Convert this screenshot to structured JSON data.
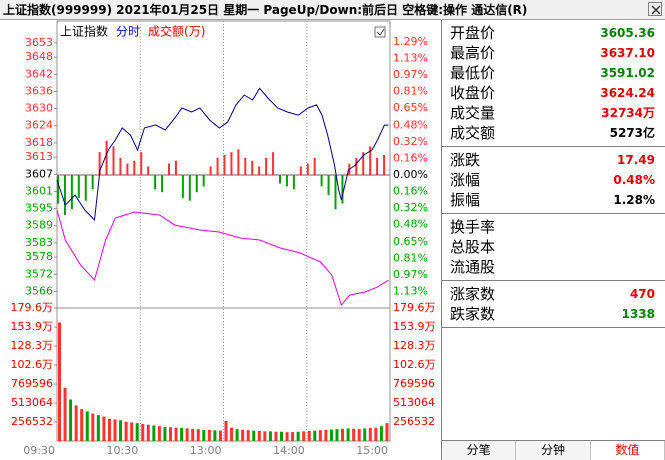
{
  "window": {
    "title": "上证指数(999999)  2021年01月25日 星期一  PageUp/Down:前后日 空格键:操作 通达信(R)"
  },
  "chart_data": [
    {
      "type": "line",
      "pane_labels": [
        {
          "text": "上证指数",
          "color": "#000000"
        },
        {
          "text": "分时",
          "color": "#0000ff"
        },
        {
          "text": "成交额(万)",
          "color": "#e00000"
        }
      ],
      "xlim": [
        0,
        240
      ],
      "ylim": [
        3560.2,
        3653.3
      ],
      "yticks": [
        3653,
        3648,
        3642,
        3636,
        3630,
        3624,
        3618,
        3613,
        3607,
        3601,
        3595,
        3589,
        3583,
        3578,
        3572,
        3566
      ],
      "y2lim": [
        -1.29,
        1.29
      ],
      "y2ticks": [
        {
          "value": 1.29,
          "label": "1.29%"
        },
        {
          "value": 1.13,
          "label": "1.13%"
        },
        {
          "value": 0.97,
          "label": "0.97%"
        },
        {
          "value": 0.81,
          "label": "0.81%"
        },
        {
          "value": 0.65,
          "label": "0.65%"
        },
        {
          "value": 0.48,
          "label": "0.48%"
        },
        {
          "value": 0.32,
          "label": "0.32%"
        },
        {
          "value": 0.16,
          "label": "0.16%"
        },
        {
          "value": 0,
          "label": "0.00%"
        },
        {
          "value": -0.16,
          "label": "0.16%"
        },
        {
          "value": -0.32,
          "label": "0.32%"
        },
        {
          "value": -0.48,
          "label": "0.48%"
        },
        {
          "value": -0.65,
          "label": "0.65%"
        },
        {
          "value": -0.81,
          "label": "0.81%"
        },
        {
          "value": -0.97,
          "label": "0.97%"
        },
        {
          "value": -1.13,
          "label": "1.13%"
        }
      ],
      "up_color": "#ff3232",
      "down_color": "#00a000",
      "series": [
        {
          "color": "#000080",
          "x": [
            0,
            6,
            13,
            20,
            27,
            31,
            37,
            42,
            47,
            53,
            58,
            63,
            71,
            78,
            85,
            90,
            97,
            103,
            110,
            117,
            123,
            129,
            135,
            141,
            146,
            152,
            159,
            166,
            174,
            181,
            187,
            191,
            195,
            200,
            203,
            205,
            210,
            215,
            221,
            227,
            231,
            236,
            239
          ],
          "values": [
            3605.0,
            3596.2,
            3599.7,
            3594.5,
            3591.0,
            3608.5,
            3615.5,
            3619.0,
            3623.2,
            3620.7,
            3615.5,
            3623.2,
            3624.3,
            3622.5,
            3626.7,
            3630.2,
            3628.8,
            3630.2,
            3626.0,
            3623.2,
            3625.3,
            3631.3,
            3634.7,
            3633.0,
            3637.1,
            3633.7,
            3630.2,
            3628.8,
            3627.7,
            3630.2,
            3631.3,
            3627.7,
            3620.8,
            3610.2,
            3601.5,
            3598.0,
            3608.5,
            3610.2,
            3613.7,
            3615.5,
            3619.0,
            3624.2,
            3624.2
          ]
        },
        {
          "color": "#e000e0",
          "x": [
            0,
            6,
            17,
            27,
            35,
            42,
            56,
            74,
            85,
            103,
            117,
            132,
            146,
            161,
            175,
            190,
            198,
            205,
            211,
            222,
            231,
            239
          ],
          "values": [
            3594.5,
            3584.0,
            3575.2,
            3570.0,
            3584.0,
            3591.7,
            3593.8,
            3592.7,
            3589.2,
            3587.5,
            3586.8,
            3584.7,
            3584.0,
            3581.2,
            3579.5,
            3576.3,
            3571.8,
            3561.2,
            3564.7,
            3565.8,
            3567.5,
            3570.0
          ]
        }
      ],
      "bars": {
        "x": [
          0,
          5,
          10,
          15,
          20,
          25,
          30,
          35,
          40,
          45,
          50,
          55,
          60,
          65,
          70,
          75,
          80,
          85,
          90,
          95,
          100,
          105,
          110,
          115,
          120,
          125,
          130,
          135,
          140,
          145,
          150,
          155,
          160,
          165,
          170,
          175,
          180,
          185,
          190,
          195,
          200,
          205,
          210,
          215,
          220,
          225,
          230,
          235
        ],
        "values": [
          -10,
          -14,
          -12,
          -8,
          -9,
          -5,
          8,
          12,
          10,
          6,
          4,
          5,
          8,
          3,
          -5,
          -6,
          4,
          5,
          -8,
          -9,
          -6,
          -4,
          3,
          6,
          7,
          8,
          9,
          6,
          5,
          3,
          6,
          8,
          -3,
          -4,
          -5,
          3,
          4,
          6,
          -4,
          -7,
          -12,
          -10,
          4,
          6,
          8,
          10,
          6,
          7
        ]
      }
    },
    {
      "type": "bar",
      "xlim": [
        0,
        240
      ],
      "xticks": [
        {
          "value": 0,
          "label": "09:30"
        },
        {
          "value": 60,
          "label": "10:30"
        },
        {
          "value": 120,
          "label": "13:00"
        },
        {
          "value": 180,
          "label": "14:00"
        },
        {
          "value": 240,
          "label": "15:00"
        }
      ],
      "ylim": [
        0,
        1795724
      ],
      "yticks": [
        {
          "value": 1795724,
          "label": "179.6万"
        },
        {
          "value": 1539192,
          "label": "153.9万"
        },
        {
          "value": 1282660,
          "label": "128.3万"
        },
        {
          "value": 1026128,
          "label": "102.6万"
        },
        769596,
        513064,
        256532
      ],
      "x": [
        0,
        4,
        8,
        12,
        16,
        20,
        24,
        28,
        32,
        36,
        40,
        44,
        48,
        52,
        56,
        60,
        64,
        68,
        72,
        76,
        80,
        84,
        88,
        92,
        96,
        100,
        104,
        108,
        112,
        116,
        120,
        124,
        128,
        132,
        136,
        140,
        144,
        148,
        152,
        156,
        160,
        164,
        168,
        172,
        176,
        180,
        184,
        188,
        192,
        196,
        200,
        204,
        208,
        212,
        216,
        220,
        224,
        228,
        232,
        236
      ],
      "values": [
        1600000,
        720000,
        560000,
        480000,
        430000,
        400000,
        370000,
        350000,
        330000,
        300000,
        290000,
        280000,
        260000,
        250000,
        240000,
        230000,
        220000,
        210000,
        200000,
        190000,
        185000,
        180000,
        175000,
        170000,
        165000,
        160000,
        150000,
        150000,
        145000,
        140000,
        270000,
        180000,
        160000,
        150000,
        145000,
        140000,
        135000,
        130000,
        130000,
        125000,
        125000,
        120000,
        120000,
        125000,
        130000,
        135000,
        140000,
        145000,
        150000,
        155000,
        160000,
        165000,
        170000,
        165000,
        160000,
        170000,
        175000,
        180000,
        200000,
        240000
      ],
      "bar_colors": [
        "#ff3232",
        "#ff3232",
        "#00a000",
        "#ff3232",
        "#ff3232",
        "#00a000",
        "#ff3232",
        "#00a000",
        "#ff3232",
        "#ff3232",
        "#ff3232",
        "#00a000",
        "#ff3232",
        "#ff3232",
        "#00a000",
        "#ff3232",
        "#ff3232",
        "#00a000",
        "#ff3232",
        "#00a000",
        "#ff3232",
        "#ff3232",
        "#00a000",
        "#ff3232",
        "#ff3232",
        "#ff3232",
        "#00a000",
        "#ff3232",
        "#00a000",
        "#ff3232",
        "#ff3232",
        "#ff3232",
        "#00a000",
        "#ff3232",
        "#ff3232",
        "#00a000",
        "#ff3232",
        "#ff3232",
        "#00a000",
        "#ff3232",
        "#00a000",
        "#ff3232",
        "#ff3232",
        "#00a000",
        "#ff3232",
        "#ff3232",
        "#00a000",
        "#ff3232",
        "#ff3232",
        "#00a000",
        "#00a000",
        "#ff3232",
        "#00a000",
        "#ff3232",
        "#ff3232",
        "#00a000",
        "#ff3232",
        "#ff3232",
        "#00a000",
        "#ff3232"
      ]
    }
  ],
  "quote_panel": {
    "groups": [
      [
        {
          "label": "开盘价",
          "value": "3605.36",
          "color": "#008000"
        },
        {
          "label": "最高价",
          "value": "3637.10",
          "color": "#e00000"
        },
        {
          "label": "最低价",
          "value": "3591.02",
          "color": "#008000"
        },
        {
          "label": "收盘价",
          "value": "3624.24",
          "color": "#e00000"
        },
        {
          "label": "成交量",
          "value": "32734万",
          "color": "#e00000"
        },
        {
          "label": "成交额",
          "value": "5273亿",
          "color": "#000000"
        }
      ],
      [
        {
          "label": "涨跌",
          "value": "17.49",
          "color": "#e00000"
        },
        {
          "label": "涨幅",
          "value": "0.48%",
          "color": "#e00000"
        },
        {
          "label": "振幅",
          "value": "1.28%",
          "color": "#000000"
        }
      ],
      [
        {
          "label": "换手率"
        },
        {
          "label": "总股本"
        },
        {
          "label": "流通股"
        }
      ],
      [
        {
          "label": "涨家数",
          "value": "470",
          "color": "#e00000"
        },
        {
          "label": "跌家数",
          "value": "1338",
          "color": "#008000"
        }
      ]
    ]
  },
  "tabs": {
    "items": [
      "分笔",
      "分钟",
      "数值"
    ],
    "active": 2,
    "active_color": "#e00000"
  }
}
